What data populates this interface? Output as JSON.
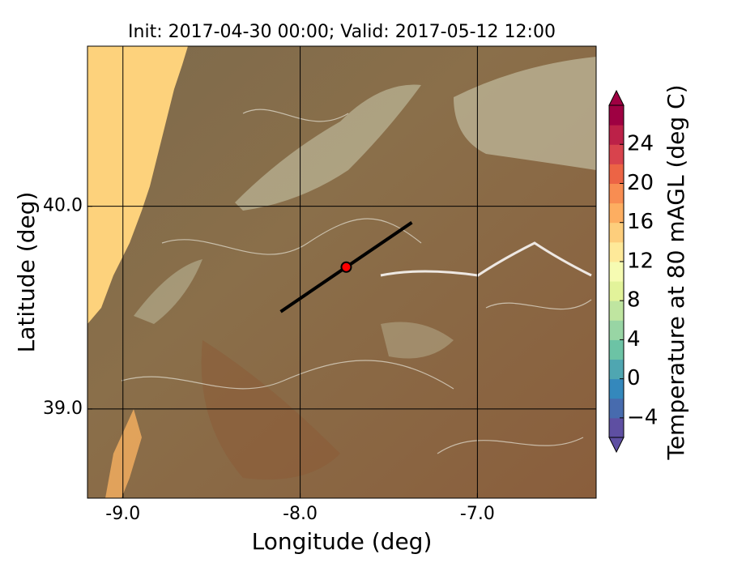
{
  "chart_data": {
    "type": "map",
    "title": "Init: 2017-04-30 00:00; Valid: 2017-05-12 12:00",
    "x_label": "Longitude (deg)",
    "y_label": "Latitude (deg)",
    "xlim": [
      -9.2,
      -6.33
    ],
    "ylim": [
      38.56,
      40.79
    ],
    "xticks": [
      {
        "value": -9,
        "label": "-9.0"
      },
      {
        "value": -8,
        "label": "-8.0"
      },
      {
        "value": -7,
        "label": "-7.0"
      }
    ],
    "yticks": [
      {
        "value": 39,
        "label": "39.0"
      },
      {
        "value": 40,
        "label": "40.0"
      }
    ],
    "grid": true,
    "transect": {
      "x": [
        -8.11,
        -7.37
      ],
      "y": [
        39.48,
        39.92
      ],
      "color": "#000000"
    },
    "point": {
      "x": -7.74,
      "y": 39.7,
      "color": "#ff0000"
    },
    "colorbar": {
      "label": "Temperature at 80 mAGL (deg C)",
      "lim": [
        -6,
        28
      ],
      "ticks": [
        {
          "value": -4,
          "label": "−4"
        },
        0,
        4,
        8,
        12,
        16,
        20,
        24
      ],
      "colors": [
        "#5e4fa2",
        "#476bae",
        "#3488bc",
        "#4fa6b1",
        "#6cc3a5",
        "#98d5a4",
        "#bfe5a0",
        "#e2f39a",
        "#f6fbb2",
        "#fee999",
        "#fdce7c",
        "#fdae61",
        "#f88d52",
        "#ec6445",
        "#d8434d",
        "#bc2148",
        "#9e0142"
      ]
    }
  }
}
